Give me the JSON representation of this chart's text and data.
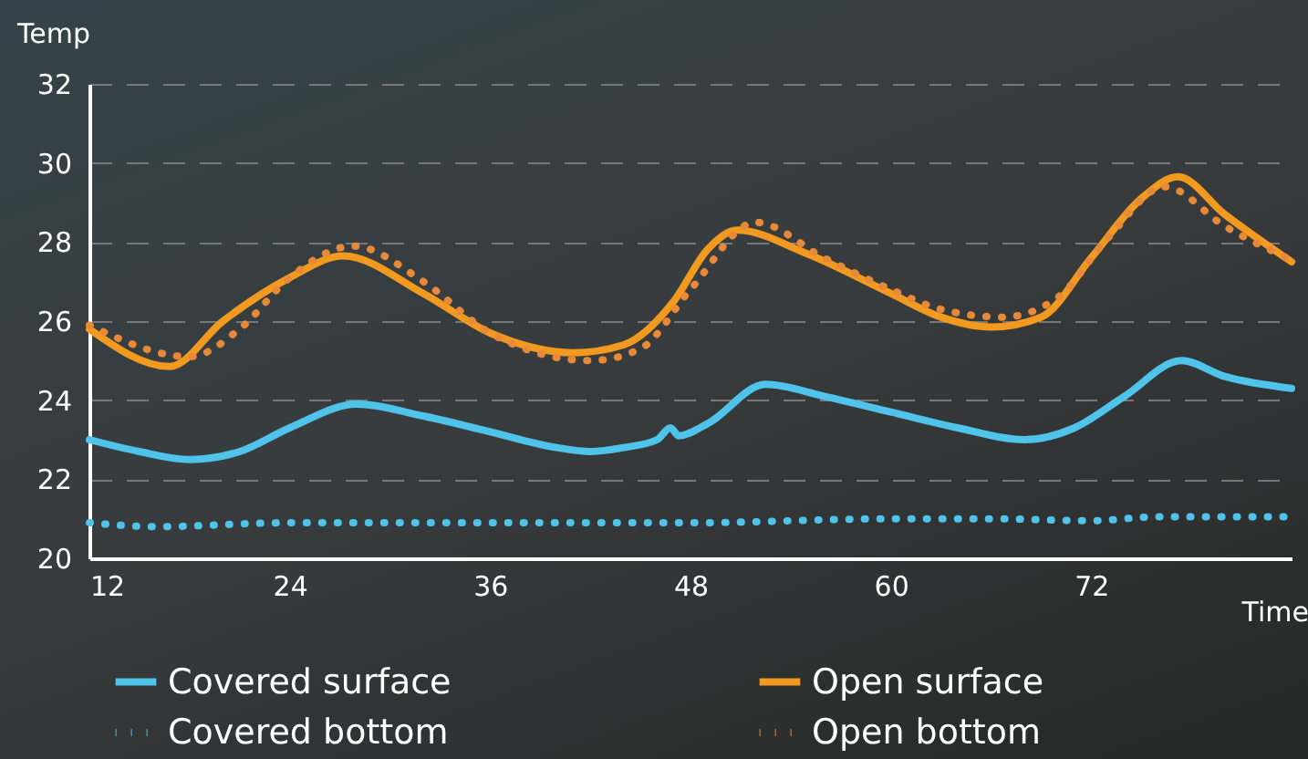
{
  "chart_data": {
    "type": "line",
    "xlabel": "Time",
    "ylabel": "Temp",
    "xlim": [
      12,
      84
    ],
    "xticks": [
      12,
      24,
      36,
      48,
      60,
      72
    ],
    "ylim": [
      20,
      32
    ],
    "yticks": [
      20,
      22,
      24,
      26,
      28,
      30,
      32
    ],
    "grid": "y",
    "legend": "bottom",
    "marker": "none",
    "series": [
      {
        "name": "Covered surface",
        "color": "#4fc3ea",
        "line_style": "solid",
        "x": [
          12,
          15,
          18,
          21,
          24,
          28,
          32,
          36,
          40,
          42,
          44,
          46,
          46.8,
          47.3,
          49,
          52.5,
          56,
          60,
          64,
          68,
          71,
          74,
          77.4,
          80,
          84
        ],
        "values": [
          23.0,
          22.7,
          22.5,
          22.7,
          23.3,
          23.9,
          23.6,
          23.2,
          22.8,
          22.7,
          22.8,
          23.0,
          23.3,
          23.1,
          23.4,
          24.4,
          24.1,
          23.7,
          23.3,
          23.0,
          23.3,
          24.1,
          25.0,
          24.6,
          24.3
        ]
      },
      {
        "name": "Open surface",
        "color": "#f29a1f",
        "line_style": "solid",
        "x": [
          12,
          16.8,
          20,
          24,
          27.2,
          32,
          36,
          41,
          44,
          47,
          49,
          50.8,
          55,
          60,
          63,
          66,
          69,
          72,
          75,
          77.2,
          80,
          84
        ],
        "values": [
          25.8,
          24.85,
          26.0,
          27.1,
          27.65,
          26.7,
          25.7,
          25.2,
          25.4,
          26.5,
          27.8,
          28.3,
          27.7,
          26.7,
          26.1,
          25.85,
          26.1,
          27.6,
          29.1,
          29.65,
          28.7,
          27.5
        ]
      },
      {
        "name": "Covered bottom",
        "color": "#4fc3ea",
        "line_style": "dotted",
        "x": [
          12,
          16,
          24,
          36,
          48,
          60,
          66,
          72,
          76,
          84
        ],
        "values": [
          20.9,
          20.8,
          20.9,
          20.9,
          20.9,
          21.0,
          21.0,
          20.95,
          21.05,
          21.05
        ]
      },
      {
        "name": "Open bottom",
        "color": "#e8893a",
        "line_style": "dotted",
        "x": [
          12,
          18,
          21,
          24,
          27.8,
          32,
          36,
          42,
          45,
          48,
          51.9,
          56,
          60,
          63,
          66.7,
          70,
          73,
          76.4,
          80,
          83.7
        ],
        "values": [
          25.9,
          25.1,
          25.8,
          27.1,
          27.9,
          27.0,
          25.7,
          25.0,
          25.3,
          26.8,
          28.5,
          27.6,
          26.8,
          26.3,
          26.1,
          26.6,
          28.1,
          29.4,
          28.4,
          27.6
        ]
      }
    ]
  }
}
